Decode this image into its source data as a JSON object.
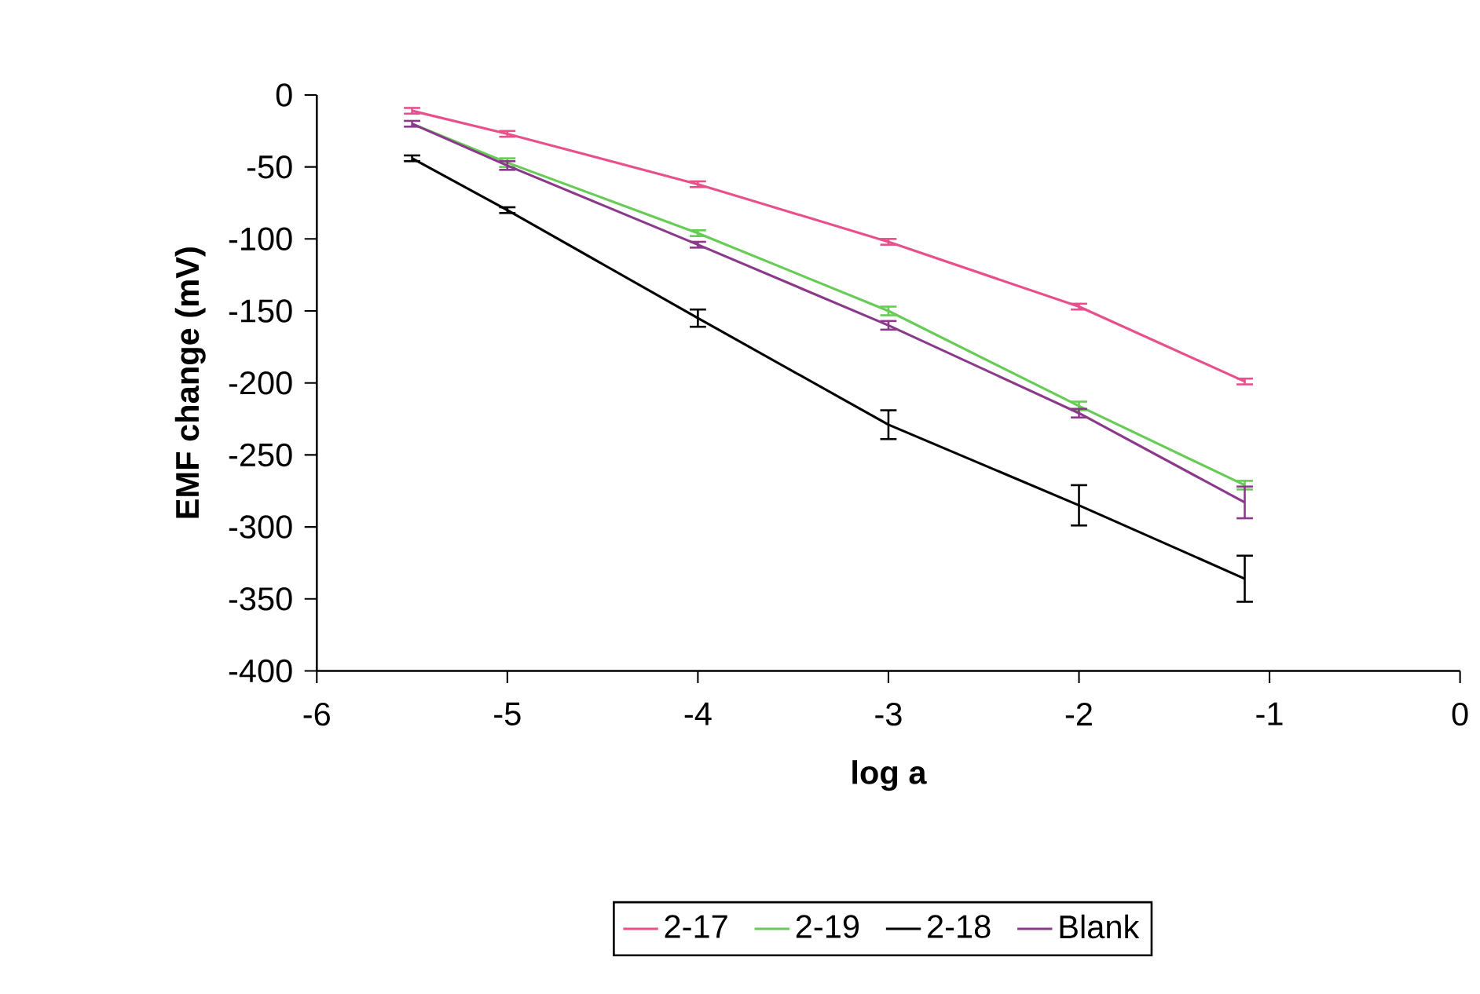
{
  "chart_data": {
    "type": "line",
    "xlabel": "log a",
    "ylabel": "EMF change (mV)",
    "xlim": [
      -6,
      0
    ],
    "xticks": [
      -6,
      -5,
      -4,
      -3,
      -2,
      -1,
      0
    ],
    "ylim": [
      -400,
      0
    ],
    "yticks": [
      -400,
      -350,
      -300,
      -250,
      -200,
      -150,
      -100,
      -50,
      0
    ],
    "grid": false,
    "legend": "bottom",
    "marker": "none",
    "line_style": "solid",
    "x": [
      -5.5,
      -5,
      -4,
      -3,
      -2,
      -1.13
    ],
    "series": [
      {
        "name": "2-17",
        "color": "#e8508c",
        "values": [
          -11,
          -27,
          -62,
          -102,
          -147,
          -199
        ],
        "errors": [
          2,
          2,
          2,
          2,
          2,
          2
        ]
      },
      {
        "name": "2-19",
        "color": "#66cc55",
        "values": [
          -20,
          -47,
          -96,
          -150,
          -216,
          -271
        ],
        "errors": [
          null,
          3,
          2,
          3,
          3,
          3
        ]
      },
      {
        "name": "2-18",
        "color": "#000000",
        "values": [
          -44,
          -80,
          -155,
          -229,
          -285,
          -336
        ],
        "errors": [
          2,
          2,
          6,
          10,
          14,
          16
        ]
      },
      {
        "name": "Blank",
        "color": "#8b3a8b",
        "values": [
          -20,
          -49,
          -104,
          -160,
          -221,
          -283
        ],
        "errors": [
          2,
          3,
          2,
          3,
          3,
          11
        ]
      }
    ]
  }
}
